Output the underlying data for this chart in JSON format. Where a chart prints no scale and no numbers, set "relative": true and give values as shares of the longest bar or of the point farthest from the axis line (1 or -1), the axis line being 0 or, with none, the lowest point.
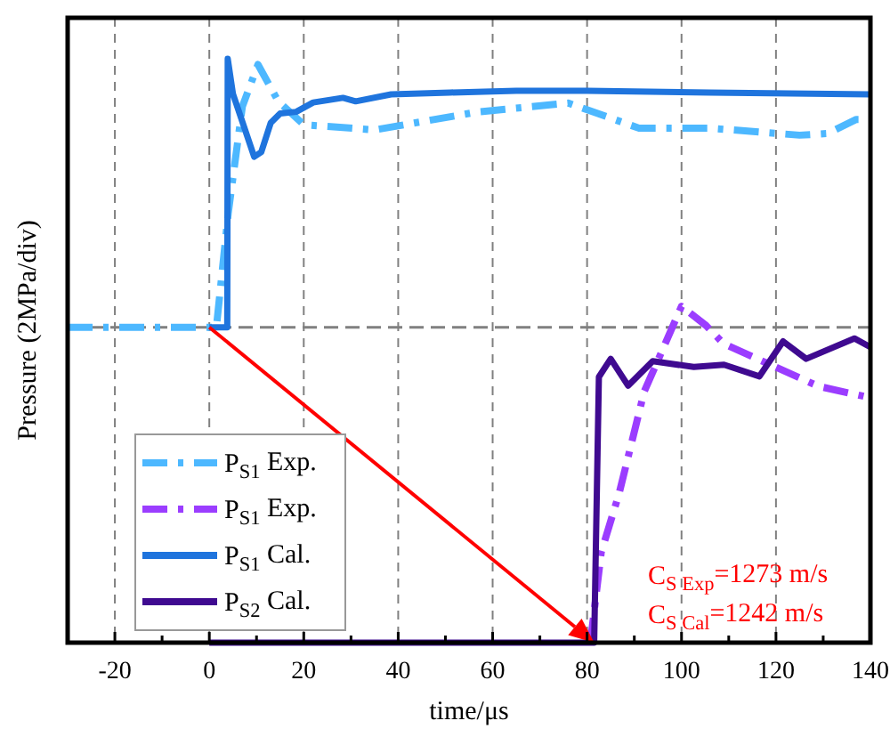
{
  "chart_data": {
    "type": "line",
    "relative": true,
    "xlabel": "time/μs",
    "ylabel": "Pressure (2MPa/div)",
    "xlim": [
      -30,
      140
    ],
    "xticks": [
      {
        "value": -30,
        "label": null
      },
      -20,
      {
        "value": -10,
        "label": null
      },
      0,
      {
        "value": 10,
        "label": null
      },
      20,
      {
        "value": 30,
        "label": null
      },
      40,
      {
        "value": 50,
        "label": null
      },
      60,
      {
        "value": 70,
        "label": null
      },
      80,
      {
        "value": 90,
        "label": null
      },
      100,
      {
        "value": 110,
        "label": null
      },
      120,
      {
        "value": 130,
        "label": null
      },
      140
    ],
    "grid": "x",
    "legend": "bottom left",
    "marker": "none",
    "ref_lines": [
      {
        "axis": "y",
        "value": 0.54,
        "color": "#808080",
        "line_style": "dashed"
      }
    ],
    "annotations": [
      "C$_{S Exp}$=1273 m/s",
      "C$_{S Cal}$=1242 m/s"
    ],
    "series": [
      {
        "name": "P$_{S1}$ Exp.",
        "color": "#4db8ff",
        "line_style": "dashdot",
        "x": [
          -30,
          1.5,
          4,
          7,
          10.3,
          14.6,
          20,
          35,
          57,
          76,
          91,
          106,
          125,
          131,
          137,
          140
        ],
        "values": [
          0.54,
          0.54,
          0.735,
          0.918,
          0.99,
          0.927,
          0.887,
          0.878,
          0.909,
          0.924,
          0.881,
          0.881,
          0.869,
          0.872,
          0.896,
          0.896
        ]
      },
      {
        "name": "P$_{S1}$ Exp.",
        "color": "#9b3dff",
        "line_style": "dashdot",
        "x": [
          80.7,
          83,
          86.8,
          92.1,
          100,
          105.2,
          108.9,
          129,
          139.1
        ],
        "values": [
          0,
          0.155,
          0.256,
          0.43,
          0.576,
          0.543,
          0.512,
          0.439,
          0.421
        ]
      },
      {
        "name": "P$_{S1}$ Cal.",
        "color": "#1f74dd",
        "line_style": "solid",
        "x": [
          0,
          3.8,
          3.9,
          5,
          9.5,
          11,
          13,
          15,
          18.4,
          22,
          28.3,
          31,
          38.5,
          51,
          65,
          80,
          106,
          140
        ],
        "values": [
          0.54,
          0.54,
          1.0,
          0.94,
          0.832,
          0.84,
          0.89,
          0.906,
          0.909,
          0.925,
          0.933,
          0.927,
          0.939,
          0.942,
          0.945,
          0.945,
          0.942,
          0.939
        ]
      },
      {
        "name": "P$_{S2}$ Cal.",
        "color": "#3f0a90",
        "line_style": "solid",
        "x": [
          0,
          81.5,
          82.5,
          85,
          88.7,
          93.9,
          102.6,
          109,
          116.5,
          121.5,
          126.4,
          136.6,
          140
        ],
        "values": [
          0,
          0,
          0.455,
          0.486,
          0.44,
          0.482,
          0.472,
          0.476,
          0.456,
          0.516,
          0.486,
          0.521,
          0.506
        ]
      }
    ]
  }
}
